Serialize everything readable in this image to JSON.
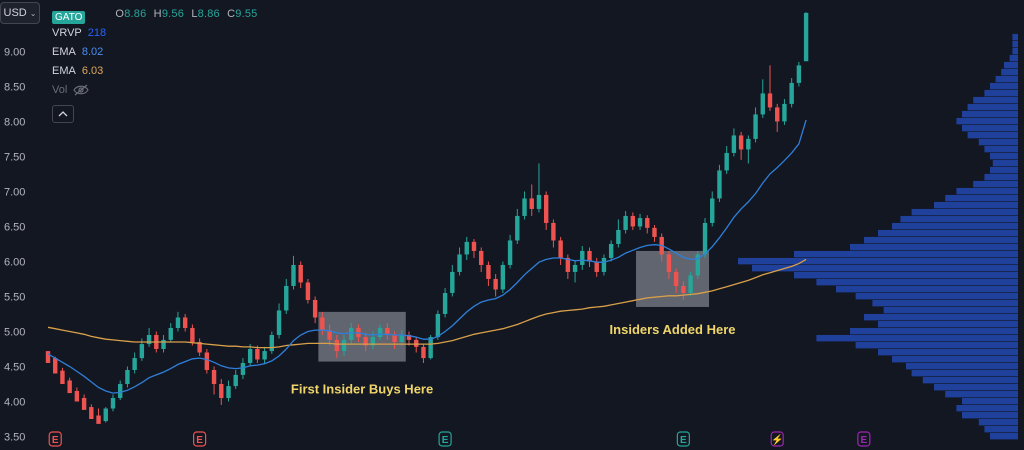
{
  "currency": {
    "label": "USD"
  },
  "legend": {
    "symbol": "GATO",
    "ohlc": {
      "o_key": "O",
      "o": "8.86",
      "h_key": "H",
      "h": "9.56",
      "l_key": "L",
      "l": "8.86",
      "c_key": "C",
      "c": "9.55"
    },
    "indicators": [
      {
        "name": "VRVP",
        "value": "218",
        "color": "#2962ff"
      },
      {
        "name": "EMA",
        "value": "8.02",
        "color": "#4a8ef0"
      },
      {
        "name": "EMA",
        "value": "6.03",
        "color": "#e0a85c"
      }
    ],
    "vol_label": "Vol",
    "icons": {
      "visibility": "eye-off-icon",
      "collapse": "chevron-up-icon"
    }
  },
  "colors": {
    "up": "#26a69a",
    "down": "#ef5350",
    "ema_fast": "#2f7fd9",
    "ema_slow": "#d9a04a",
    "volume_profile": "#2962ff",
    "annotation": "#f0d66a"
  },
  "chart_data": {
    "type": "candlestick",
    "title": "",
    "xlabel": "",
    "ylabel": "",
    "ylim": [
      3.45,
      9.62
    ],
    "yticks": [
      "9.00",
      "8.50",
      "8.00",
      "7.50",
      "7.00",
      "6.50",
      "6.00",
      "5.50",
      "5.00",
      "4.50",
      "4.00",
      "3.50"
    ],
    "candles": [
      [
        4.72,
        4.55,
        4.68,
        4.62
      ],
      [
        4.62,
        4.4,
        4.64,
        4.44
      ],
      [
        4.44,
        4.25,
        4.48,
        4.3
      ],
      [
        4.3,
        4.12,
        4.34,
        4.15
      ],
      [
        4.15,
        4.0,
        4.2,
        4.05
      ],
      [
        4.05,
        3.88,
        4.1,
        3.92
      ],
      [
        3.92,
        3.75,
        3.96,
        3.8
      ],
      [
        3.8,
        3.68,
        3.9,
        3.72
      ],
      [
        3.72,
        3.9,
        3.92,
        3.7
      ],
      [
        3.9,
        4.05,
        4.1,
        3.86
      ],
      [
        4.05,
        4.25,
        4.3,
        4.02
      ],
      [
        4.25,
        4.45,
        4.5,
        4.2
      ],
      [
        4.45,
        4.62,
        4.7,
        4.4
      ],
      [
        4.62,
        4.82,
        4.9,
        4.58
      ],
      [
        4.82,
        4.95,
        5.05,
        4.78
      ],
      [
        4.95,
        4.75,
        5.0,
        4.7
      ],
      [
        4.75,
        4.88,
        4.95,
        4.7
      ],
      [
        4.88,
        5.05,
        5.12,
        4.85
      ],
      [
        5.05,
        5.2,
        5.28,
        5.0
      ],
      [
        5.2,
        5.05,
        5.25,
        5.0
      ],
      [
        5.05,
        4.85,
        5.1,
        4.8
      ],
      [
        4.85,
        4.7,
        4.9,
        4.65
      ],
      [
        4.7,
        4.45,
        4.75,
        4.4
      ],
      [
        4.45,
        4.25,
        4.5,
        4.1
      ],
      [
        4.25,
        4.05,
        4.32,
        3.95
      ],
      [
        4.05,
        4.22,
        4.3,
        4.0
      ],
      [
        4.22,
        4.38,
        4.45,
        4.18
      ],
      [
        4.38,
        4.55,
        4.62,
        4.32
      ],
      [
        4.55,
        4.75,
        4.82,
        4.5
      ],
      [
        4.75,
        4.6,
        4.8,
        4.55
      ],
      [
        4.6,
        4.72,
        4.78,
        4.55
      ],
      [
        4.72,
        4.95,
        5.0,
        4.68
      ],
      [
        4.95,
        5.3,
        5.4,
        4.9
      ],
      [
        5.3,
        5.65,
        5.75,
        5.25
      ],
      [
        5.65,
        5.95,
        6.08,
        5.6
      ],
      [
        5.95,
        5.7,
        6.0,
        5.62
      ],
      [
        5.7,
        5.45,
        5.75,
        5.4
      ],
      [
        5.45,
        5.2,
        5.5,
        5.12
      ],
      [
        5.2,
        5.02,
        5.28,
        4.95
      ],
      [
        5.02,
        4.88,
        5.1,
        4.8
      ],
      [
        4.88,
        4.72,
        4.95,
        4.62
      ],
      [
        4.72,
        4.88,
        4.95,
        4.65
      ],
      [
        4.88,
        5.05,
        5.12,
        4.82
      ],
      [
        5.05,
        4.92,
        5.1,
        4.85
      ],
      [
        4.92,
        4.8,
        4.98,
        4.72
      ],
      [
        4.8,
        4.92,
        5.0,
        4.75
      ],
      [
        4.92,
        5.05,
        5.1,
        4.88
      ],
      [
        5.05,
        4.95,
        5.12,
        4.88
      ],
      [
        4.95,
        4.85,
        5.0,
        4.75
      ],
      [
        4.85,
        4.95,
        5.02,
        4.8
      ],
      [
        4.95,
        4.88,
        5.0,
        4.8
      ],
      [
        4.88,
        4.78,
        4.92,
        4.7
      ],
      [
        4.78,
        4.62,
        4.82,
        4.55
      ],
      [
        4.62,
        4.92,
        4.95,
        4.6
      ],
      [
        4.92,
        5.25,
        5.3,
        4.88
      ],
      [
        5.25,
        5.55,
        5.62,
        5.2
      ],
      [
        5.55,
        5.85,
        5.95,
        5.5
      ],
      [
        5.85,
        6.1,
        6.2,
        5.8
      ],
      [
        6.1,
        6.28,
        6.35,
        6.02
      ],
      [
        6.28,
        6.15,
        6.32,
        6.05
      ],
      [
        6.15,
        5.95,
        6.2,
        5.85
      ],
      [
        5.95,
        5.75,
        6.0,
        5.65
      ],
      [
        5.75,
        5.6,
        5.82,
        5.5
      ],
      [
        5.6,
        5.95,
        6.0,
        5.55
      ],
      [
        5.95,
        6.3,
        6.38,
        5.9
      ],
      [
        6.3,
        6.65,
        6.75,
        6.25
      ],
      [
        6.65,
        6.9,
        7.0,
        6.6
      ],
      [
        6.9,
        6.75,
        7.1,
        6.65
      ],
      [
        6.75,
        6.95,
        7.4,
        6.7
      ],
      [
        6.95,
        6.55,
        7.0,
        6.45
      ],
      [
        6.55,
        6.3,
        6.6,
        6.2
      ],
      [
        6.3,
        6.05,
        6.35,
        5.95
      ],
      [
        6.05,
        5.85,
        6.1,
        5.75
      ],
      [
        5.85,
        5.95,
        6.02,
        5.7
      ],
      [
        5.95,
        6.15,
        6.22,
        5.88
      ],
      [
        6.15,
        6.0,
        6.2,
        5.92
      ],
      [
        6.0,
        5.85,
        6.05,
        5.78
      ],
      [
        5.85,
        6.05,
        6.1,
        5.8
      ],
      [
        6.05,
        6.25,
        6.3,
        6.0
      ],
      [
        6.25,
        6.45,
        6.6,
        6.2
      ],
      [
        6.45,
        6.65,
        6.72,
        6.4
      ],
      [
        6.65,
        6.5,
        6.7,
        6.45
      ],
      [
        6.5,
        6.62,
        6.68,
        6.45
      ],
      [
        6.62,
        6.48,
        6.66,
        6.4
      ],
      [
        6.48,
        6.35,
        6.52,
        6.28
      ],
      [
        6.35,
        6.1,
        6.4,
        6.0
      ],
      [
        6.1,
        5.85,
        6.15,
        5.75
      ],
      [
        5.85,
        5.65,
        5.9,
        5.55
      ],
      [
        5.65,
        5.55,
        5.72,
        5.45
      ],
      [
        5.55,
        5.8,
        5.85,
        5.5
      ],
      [
        5.8,
        6.1,
        6.15,
        5.75
      ],
      [
        6.1,
        6.55,
        6.62,
        6.05
      ],
      [
        6.55,
        6.9,
        7.0,
        6.5
      ],
      [
        6.9,
        7.3,
        7.38,
        6.85
      ],
      [
        7.3,
        7.55,
        7.65,
        7.25
      ],
      [
        7.55,
        7.8,
        7.9,
        7.5
      ],
      [
        7.8,
        7.6,
        7.85,
        7.45
      ],
      [
        7.6,
        7.75,
        7.8,
        7.4
      ],
      [
        7.75,
        8.1,
        8.2,
        7.7
      ],
      [
        8.1,
        8.4,
        8.6,
        8.05
      ],
      [
        8.4,
        8.2,
        8.8,
        8.15
      ],
      [
        8.2,
        8.0,
        8.25,
        7.85
      ],
      [
        8.0,
        8.25,
        8.32,
        7.95
      ],
      [
        8.25,
        8.55,
        8.62,
        8.2
      ],
      [
        8.55,
        8.8,
        8.85,
        8.5
      ],
      [
        8.86,
        9.55,
        9.56,
        8.86
      ]
    ],
    "ema_fast": [
      4.68,
      4.62,
      4.56,
      4.5,
      4.43,
      4.36,
      4.28,
      4.2,
      4.15,
      4.12,
      4.13,
      4.16,
      4.21,
      4.27,
      4.34,
      4.38,
      4.42,
      4.47,
      4.53,
      4.57,
      4.61,
      4.62,
      4.6,
      4.56,
      4.51,
      4.48,
      4.47,
      4.48,
      4.51,
      4.52,
      4.54,
      4.58,
      4.65,
      4.75,
      4.87,
      4.95,
      5.0,
      5.02,
      5.02,
      5.01,
      4.98,
      4.97,
      4.98,
      4.98,
      4.96,
      4.95,
      4.96,
      4.96,
      4.95,
      4.95,
      4.94,
      4.92,
      4.89,
      4.89,
      4.93,
      5.0,
      5.08,
      5.18,
      5.28,
      5.36,
      5.42,
      5.45,
      5.47,
      5.52,
      5.6,
      5.7,
      5.81,
      5.9,
      5.99,
      6.03,
      6.05,
      6.05,
      6.03,
      6.01,
      6.02,
      6.01,
      5.99,
      5.99,
      6.02,
      6.06,
      6.12,
      6.16,
      6.2,
      6.23,
      6.24,
      6.23,
      6.18,
      6.12,
      6.06,
      6.03,
      6.04,
      6.11,
      6.21,
      6.34,
      6.48,
      6.63,
      6.75,
      6.85,
      6.97,
      7.12,
      7.25,
      7.34,
      7.44,
      7.55,
      7.68,
      8.02
    ],
    "ema_slow": [
      5.06,
      5.04,
      5.02,
      5.0,
      4.98,
      4.96,
      4.93,
      4.91,
      4.89,
      4.88,
      4.87,
      4.86,
      4.85,
      4.85,
      4.85,
      4.85,
      4.85,
      4.85,
      4.85,
      4.85,
      4.84,
      4.83,
      4.82,
      4.81,
      4.8,
      4.79,
      4.79,
      4.78,
      4.78,
      4.77,
      4.77,
      4.77,
      4.78,
      4.8,
      4.81,
      4.82,
      4.83,
      4.83,
      4.83,
      4.83,
      4.82,
      4.82,
      4.82,
      4.82,
      4.82,
      4.82,
      4.82,
      4.82,
      4.82,
      4.82,
      4.82,
      4.82,
      4.82,
      4.82,
      4.83,
      4.85,
      4.87,
      4.9,
      4.93,
      4.96,
      4.98,
      5.0,
      5.02,
      5.04,
      5.07,
      5.1,
      5.14,
      5.18,
      5.22,
      5.25,
      5.27,
      5.29,
      5.3,
      5.31,
      5.32,
      5.34,
      5.35,
      5.36,
      5.38,
      5.4,
      5.42,
      5.44,
      5.46,
      5.48,
      5.49,
      5.5,
      5.51,
      5.51,
      5.52,
      5.53,
      5.54,
      5.56,
      5.58,
      5.61,
      5.64,
      5.67,
      5.7,
      5.73,
      5.77,
      5.81,
      5.84,
      5.87,
      5.9,
      5.93,
      5.97,
      6.03
    ],
    "volume_profile": [
      [
        3.5,
        0.1
      ],
      [
        3.6,
        0.12
      ],
      [
        3.7,
        0.14
      ],
      [
        3.8,
        0.2
      ],
      [
        3.9,
        0.22
      ],
      [
        4.0,
        0.2
      ],
      [
        4.1,
        0.26
      ],
      [
        4.2,
        0.3
      ],
      [
        4.3,
        0.34
      ],
      [
        4.4,
        0.38
      ],
      [
        4.5,
        0.4
      ],
      [
        4.6,
        0.45
      ],
      [
        4.7,
        0.5
      ],
      [
        4.8,
        0.58
      ],
      [
        4.9,
        0.72
      ],
      [
        5.0,
        0.6
      ],
      [
        5.1,
        0.5
      ],
      [
        5.2,
        0.55
      ],
      [
        5.3,
        0.48
      ],
      [
        5.4,
        0.52
      ],
      [
        5.5,
        0.58
      ],
      [
        5.6,
        0.65
      ],
      [
        5.7,
        0.72
      ],
      [
        5.8,
        0.8
      ],
      [
        5.9,
        0.95
      ],
      [
        6.0,
        1.0
      ],
      [
        6.1,
        0.8
      ],
      [
        6.2,
        0.6
      ],
      [
        6.3,
        0.55
      ],
      [
        6.4,
        0.5
      ],
      [
        6.5,
        0.45
      ],
      [
        6.6,
        0.42
      ],
      [
        6.7,
        0.38
      ],
      [
        6.8,
        0.3
      ],
      [
        6.9,
        0.26
      ],
      [
        7.0,
        0.22
      ],
      [
        7.1,
        0.16
      ],
      [
        7.2,
        0.12
      ],
      [
        7.3,
        0.1
      ],
      [
        7.4,
        0.09
      ],
      [
        7.5,
        0.1
      ],
      [
        7.6,
        0.12
      ],
      [
        7.7,
        0.14
      ],
      [
        7.8,
        0.18
      ],
      [
        7.9,
        0.2
      ],
      [
        8.0,
        0.22
      ],
      [
        8.1,
        0.2
      ],
      [
        8.2,
        0.18
      ],
      [
        8.3,
        0.16
      ],
      [
        8.4,
        0.12
      ],
      [
        8.5,
        0.1
      ],
      [
        8.6,
        0.08
      ],
      [
        8.7,
        0.06
      ],
      [
        8.8,
        0.05
      ],
      [
        8.9,
        0.03
      ],
      [
        9.0,
        0.02
      ],
      [
        9.1,
        0.02
      ],
      [
        9.2,
        0.02
      ]
    ],
    "zones": [
      {
        "start": 38,
        "end": 49,
        "low": 4.57,
        "high": 5.28,
        "label": "First Insider Buys Here"
      },
      {
        "start": 82,
        "end": 91,
        "low": 5.35,
        "high": 6.15,
        "label": "Insiders Added Here"
      }
    ],
    "events": [
      {
        "index": 1,
        "letter": "E",
        "color": "#ef5350"
      },
      {
        "index": 21,
        "letter": "E",
        "color": "#ef5350"
      },
      {
        "index": 55,
        "letter": "E",
        "color": "#26a69a"
      },
      {
        "index": 88,
        "letter": "E",
        "color": "#26a69a"
      },
      {
        "index": 101,
        "letter": "⚡",
        "color": "#9c27b0"
      },
      {
        "index": 113,
        "letter": "E",
        "color": "#9c27b0"
      }
    ]
  }
}
